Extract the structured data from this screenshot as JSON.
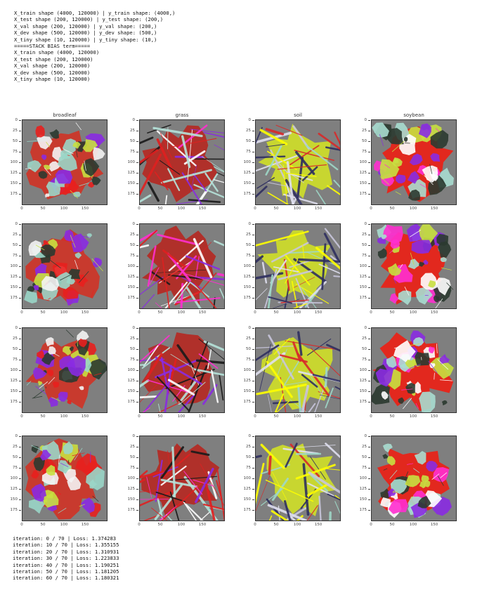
{
  "top_log": [
    "X_train shape (4000, 120000) | y_train shape: (4000,)",
    "X_test shape (200, 120000) | y_test shape: (200,)",
    "X_val shape (200, 120000) | y_val shape: (200,)",
    "X_dev shape (500, 120000) | y_dev shape: (500,)",
    "X_tiny shape (10, 120000) | y_tiny shape: (10,)",
    "=====STACK BIAS term=====",
    "X_train shape (4000, 120000)",
    "X_test shape (200, 120000)",
    "X_val shape (200, 120000)",
    "X_dev shape (500, 120000)",
    "X_tiny shape (10, 120000)"
  ],
  "column_titles": [
    "broadleaf",
    "grass",
    "soil",
    "soybean"
  ],
  "y_ticks": [
    "0",
    "25",
    "50",
    "75",
    "100",
    "125",
    "150",
    "175"
  ],
  "x_ticks": [
    "0",
    "50",
    "100",
    "150"
  ],
  "image_grid": [
    [
      "broadleaf",
      "grass",
      "soil",
      "soybean"
    ],
    [
      "broadleaf",
      "grass",
      "soil",
      "soybean"
    ],
    [
      "broadleaf",
      "grass",
      "soil",
      "soybean"
    ],
    [
      "broadleaf",
      "grass",
      "soil",
      "soybean"
    ]
  ],
  "palettes": {
    "broadleaf": {
      "background": "#7f7f7f",
      "base": "#c83a2e",
      "accents": [
        "#e8201e",
        "#9ad6c8",
        "#2b3a30",
        "#f4f4f4",
        "#c8e040",
        "#8a2be2"
      ]
    },
    "grass": {
      "background": "#7f7f7f",
      "base": "#b0302a",
      "accents": [
        "#8a2be2",
        "#b6e3da",
        "#ff2fd0",
        "#1a1a1a",
        "#e02020",
        "#ffffff"
      ]
    },
    "soil": {
      "background": "#7f7f7f",
      "base": "#c8d630",
      "accents": [
        "#d82a2a",
        "#c9c7dd",
        "#2f2f5f",
        "#ffff00",
        "#e0e0f0",
        "#9fd8c8"
      ]
    },
    "soybean": {
      "background": "#7f7f7f",
      "base": "#e2281e",
      "accents": [
        "#ff2fd0",
        "#2b3a30",
        "#a8ddd0",
        "#ffffff",
        "#c8e040",
        "#8a2be2"
      ]
    }
  },
  "bottom_log": [
    "iteration: 0 / 70 | Loss: 1.374283",
    "iteration: 10 / 70 | Loss: 1.355155",
    "iteration: 20 / 70 | Loss: 1.310931",
    "iteration: 30 / 70 | Loss: 1.223833",
    "iteration: 40 / 70 | Loss: 1.190251",
    "iteration: 50 / 70 | Loss: 1.181205",
    "iteration: 60 / 70 | Loss: 1.180321"
  ]
}
